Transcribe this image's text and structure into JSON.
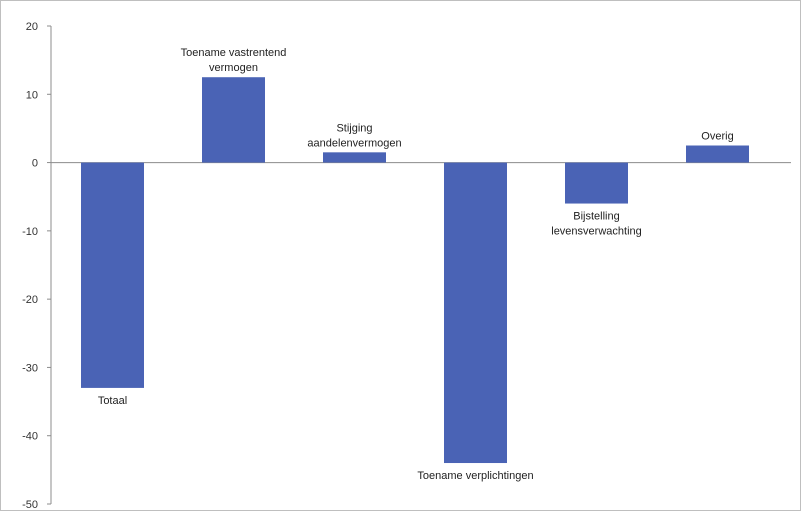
{
  "chart_data": {
    "type": "bar",
    "title": "",
    "xlabel": "",
    "ylabel": "",
    "categories": [
      "Totaal",
      "Toename vastrentend vermogen",
      "Stijging aandelenvermogen",
      "Toename verplichtingen",
      "Bijstelling levensverwachting",
      "Overig"
    ],
    "label_lines": [
      [
        "Totaal"
      ],
      [
        "Toename vastrentend",
        "vermogen"
      ],
      [
        "Stijging",
        "aandelenvermogen"
      ],
      [
        "Toename verplichtingen"
      ],
      [
        "Bijstelling",
        "levensverwachting"
      ],
      [
        "Overig"
      ]
    ],
    "values": [
      -33,
      12.5,
      1.5,
      -44,
      -6,
      2.5
    ],
    "ylim": [
      -50,
      20
    ],
    "yticks": [
      20,
      10,
      0,
      -10,
      -20,
      -30,
      -40,
      -50
    ],
    "ytick_labels": [
      "20",
      "10",
      "0",
      "-10",
      "-20",
      "-30",
      "-40",
      "-50"
    ],
    "grid": false,
    "bar_color": "#4a63b5",
    "axis_color": "#8c8c8c"
  }
}
